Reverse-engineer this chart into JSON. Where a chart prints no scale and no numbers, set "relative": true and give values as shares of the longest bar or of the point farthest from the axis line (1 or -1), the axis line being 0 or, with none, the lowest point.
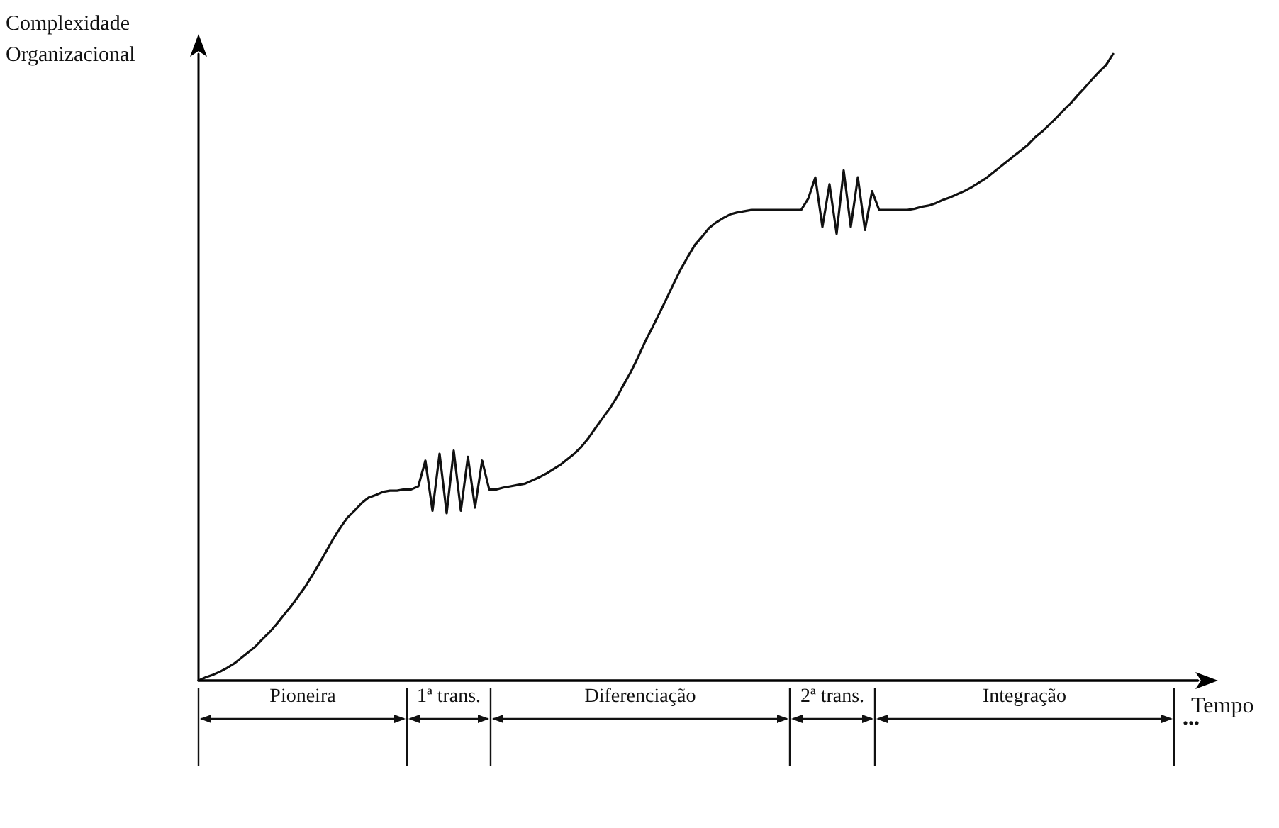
{
  "chart_data": {
    "type": "line",
    "relative": true,
    "xlabel": "Tempo",
    "ylabel": "Complexidade Organizacional",
    "grid": false,
    "line_style": "solid",
    "categories": [
      null,
      null,
      null,
      null,
      null,
      null,
      null,
      null,
      null,
      null,
      null,
      null,
      null,
      null,
      null,
      null,
      null,
      null,
      null,
      null,
      null,
      null,
      null,
      null,
      null,
      null,
      null,
      null,
      null,
      null,
      null,
      null,
      null,
      null,
      null,
      null,
      null,
      null,
      null,
      null,
      null,
      null,
      null,
      null,
      null,
      null,
      null,
      null,
      null,
      null,
      null,
      null,
      null,
      null,
      null,
      null,
      null,
      null,
      null,
      null,
      null,
      null,
      null,
      null,
      null,
      null,
      null,
      null,
      null,
      null,
      null,
      null,
      null,
      null,
      null,
      null,
      null,
      null,
      null,
      null,
      null,
      null,
      null,
      null,
      null,
      null,
      null,
      null,
      null,
      null,
      null,
      null,
      null,
      null,
      null,
      null,
      null,
      null,
      null,
      null,
      null,
      null,
      null,
      null,
      null,
      null,
      null,
      null,
      null,
      null,
      null,
      null,
      null,
      null,
      null,
      null,
      null,
      null,
      null,
      null,
      null,
      null,
      null,
      null,
      null,
      null,
      null,
      null,
      null,
      null,
      null,
      null,
      null,
      null,
      null,
      null,
      null,
      null,
      null,
      null,
      null,
      null
    ],
    "series": [
      {
        "color": "#111111",
        "values": [
          0,
          0.005,
          0.009,
          0.014,
          0.02,
          0.027,
          0.036,
          0.045,
          0.054,
          0.066,
          0.077,
          0.09,
          0.104,
          0.118,
          0.133,
          0.149,
          0.167,
          0.186,
          0.206,
          0.226,
          0.244,
          0.26,
          0.271,
          0.283,
          0.292,
          0.296,
          0.301,
          0.303,
          0.303,
          0.305,
          0.305,
          0.31,
          0.351,
          0.271,
          0.362,
          0.267,
          0.367,
          0.271,
          0.357,
          0.276,
          0.351,
          0.305,
          0.305,
          0.308,
          0.31,
          0.312,
          0.314,
          0.319,
          0.324,
          0.33,
          0.337,
          0.344,
          0.353,
          0.362,
          0.373,
          0.387,
          0.403,
          0.419,
          0.434,
          0.452,
          0.473,
          0.493,
          0.516,
          0.541,
          0.563,
          0.586,
          0.609,
          0.633,
          0.656,
          0.676,
          0.695,
          0.708,
          0.722,
          0.731,
          0.738,
          0.744,
          0.747,
          0.749,
          0.751,
          0.751,
          0.751,
          0.751,
          0.751,
          0.751,
          0.751,
          0.751,
          0.769,
          0.803,
          0.724,
          0.792,
          0.713,
          0.814,
          0.724,
          0.803,
          0.719,
          0.781,
          0.751,
          0.751,
          0.751,
          0.751,
          0.751,
          0.753,
          0.756,
          0.758,
          0.762,
          0.767,
          0.771,
          0.776,
          0.781,
          0.787,
          0.794,
          0.801,
          0.81,
          0.819,
          0.828,
          0.837,
          0.846,
          0.855,
          0.867,
          0.876,
          0.887,
          0.898,
          0.91,
          0.921,
          0.934,
          0.946,
          0.959,
          0.971,
          0.982,
          1,
          null,
          null,
          null,
          null,
          null,
          null,
          null,
          null,
          null,
          null,
          null,
          null
        ]
      }
    ],
    "annotations": [
      "Pioneira",
      "1ª trans.",
      "Diferenciação",
      "2ª trans.",
      "Integração",
      "..."
    ]
  }
}
